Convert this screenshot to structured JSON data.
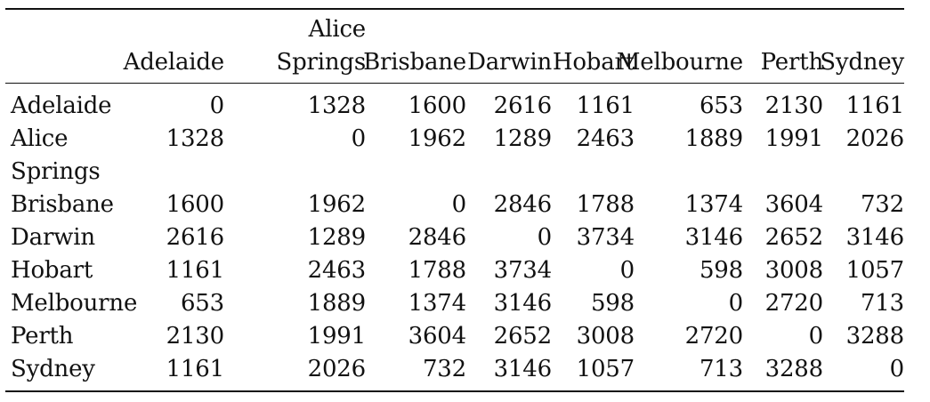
{
  "table": {
    "col_headers": [
      [
        "Adelaide"
      ],
      [
        "Alice",
        "Springs"
      ],
      [
        "Brisbane"
      ],
      [
        "Darwin"
      ],
      [
        "Hobart"
      ],
      [
        "Melbourne"
      ],
      [
        "Perth"
      ],
      [
        "Sydney"
      ]
    ],
    "rows": [
      {
        "label": [
          "Adelaide"
        ],
        "values": [
          "0",
          "1328",
          "1600",
          "2616",
          "1161",
          "653",
          "2130",
          "1161"
        ]
      },
      {
        "label": [
          "Alice",
          "Springs"
        ],
        "values": [
          "1328",
          "0",
          "1962",
          "1289",
          "2463",
          "1889",
          "1991",
          "2026"
        ]
      },
      {
        "label": [
          "Brisbane"
        ],
        "values": [
          "1600",
          "1962",
          "0",
          "2846",
          "1788",
          "1374",
          "3604",
          "732"
        ]
      },
      {
        "label": [
          "Darwin"
        ],
        "values": [
          "2616",
          "1289",
          "2846",
          "0",
          "3734",
          "3146",
          "2652",
          "3146"
        ]
      },
      {
        "label": [
          "Hobart"
        ],
        "values": [
          "1161",
          "2463",
          "1788",
          "3734",
          "0",
          "598",
          "3008",
          "1057"
        ]
      },
      {
        "label": [
          "Melbourne"
        ],
        "values": [
          "653",
          "1889",
          "1374",
          "3146",
          "598",
          "0",
          "2720",
          "713"
        ]
      },
      {
        "label": [
          "Perth"
        ],
        "values": [
          "2130",
          "1991",
          "3604",
          "2652",
          "3008",
          "2720",
          "0",
          "3288"
        ]
      },
      {
        "label": [
          "Sydney"
        ],
        "values": [
          "1161",
          "2026",
          "732",
          "3146",
          "1057",
          "713",
          "3288",
          "0"
        ]
      }
    ]
  }
}
